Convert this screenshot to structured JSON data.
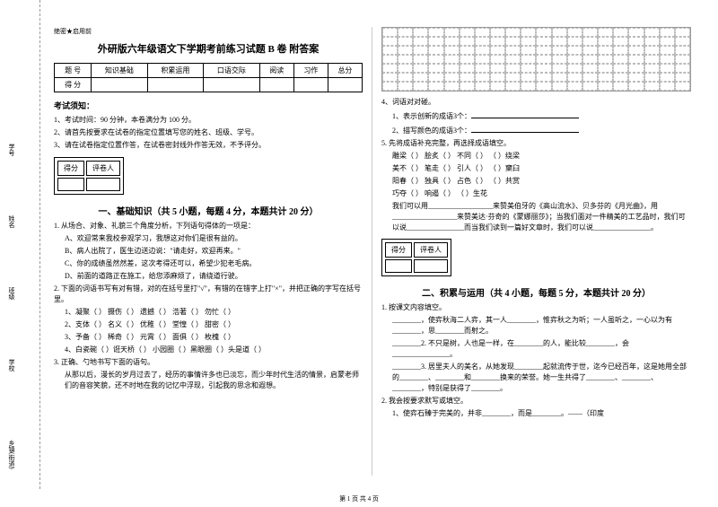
{
  "binding": {
    "labels": [
      "乡镇(街道)",
      "学校",
      "班级",
      "姓名",
      "学号"
    ],
    "dashed_marks": [
      "封",
      "线",
      "内",
      "不"
    ]
  },
  "secret": "绝密★启用前",
  "title": "外研版六年级语文下学期考前练习试题 B 卷  附答案",
  "score_table": {
    "row1": [
      "题  号",
      "知识基础",
      "积累运用",
      "口语交际",
      "阅读",
      "习作",
      "总分"
    ],
    "row2": [
      "得  分",
      "",
      "",
      "",
      "",
      "",
      ""
    ]
  },
  "notice": {
    "title": "考试须知：",
    "items": [
      "1、考试时间：90 分钟，本卷满分为 100 分。",
      "2、请首先按要求在试卷的指定位置填写您的姓名、班级、学号。",
      "3、请在试卷指定位置作答，在试卷密封线外作答无效，不予评分。"
    ]
  },
  "grade_box": {
    "c1": "得分",
    "c2": "评卷人"
  },
  "section1": {
    "title": "一、基础知识（共 5 小题，每题 4 分，本题共计 20 分）",
    "q1": "1. 从场合、对象、礼貌三个角度分析，下列语句得体的一项是：",
    "q1a": "A、欢迎常来我校参观学习，我想这对你们是很有益的。",
    "q1b": "B、病人出院了，医生边送边说：\"请走好，欢迎再来。\"",
    "q1c": "C、你的成绩虽然然差，这次考得还可以，希望少犯老毛病。",
    "q1d": "D、前面的道路正在施工，给您添麻烦了，请绕道行驶。",
    "q2": "2. 下面的词语书写有对有错，对的在括号里打\"√\"，有错的在错字上打\"×\"，并把正确的字写在括号里。",
    "q2_1": "1、凝聚（  ）  摄伤（  ）  遗撼（  ）  浩著（  ）  勿忙（  ）",
    "q2_2": "2、支体（  ）  名义（  ）  优稚（  ）  堂惶（  ）  甜密（  ）",
    "q2_3": "3、予备（  ）  稀奇（  ）  元霄（  ）  面俱（  ）  枚槐（  ）",
    "q2_4": "4、白瓷碗（  ）诳天桥（  ）  小园圈（  ）黑眼圈（  ）头是道（  ）",
    "q3": "3. 正确、勺地书写下面的语句。",
    "q3_text": "从那以后，漫长的岁月过去了，经历的事情许多也已淡忘，而少年时代生活的情景，启蒙老师们的音容笑貌，还不时地在我的记忆中浮现，引起我的思念和遐想。"
  },
  "right_col": {
    "q4": "4、词语对对碰。",
    "q4_1": "1、表示创新的成语3个：",
    "q4_2": "2、描写颜色的成语3个：",
    "q5": "5. 先将成语补充完整，再选择成语填空。",
    "q5_row1": "雕梁（  ）    脍炙（  ）    不同（  ）    （  ）绕梁",
    "q5_row2": "美不（  ）    笔走（  ）    引人（  ）    （  ）窠臼",
    "q5_row3": "阳春（  ）    独具（  ）    占色（  ）    （  ）共赏",
    "q5_row4": "巧夺（  ）    响遏（  ）    （  ）生花",
    "q5_text1": "我们可以用__________________来赞美伯牙的《高山流水》、贝多芬的《月光曲》，用__________________来赞美达·芬奇的《蒙娜丽莎》；当我们面对一件精美的工艺品时，我们可以说________________而当我们读到一篇好文章时，我们可以说________________。",
    "section2_title": "二、积累与运用（共 4 小题，每题 5 分，本题共计 20 分）",
    "q2_1": "1. 按课文内容填空。",
    "q2_1_1": "________，使弈秋海二人弈，其一人________，惟弈秋之为听；一人虽听之，一心以为有________，思________而射之。",
    "q2_1_2": "________2. 不只是树，人也是一样，在________的人，能比较________，会________________。",
    "q2_1_3": "________3. 居里夫人的美名，从她发现________起就流传于世，迄今已经百年，这是她用全部的________、________和________换来的荣誉。她一生共得了________、________、________，特别是获得了________。",
    "q2_2": "2. 我会按要求默写或填空。",
    "q2_2_1": "1、使弈石臻于完美的，并非________，而是________。——（印度"
  },
  "footer": "第 1 页 共 4 页",
  "grid": {
    "rows": 7,
    "cols": 20
  }
}
